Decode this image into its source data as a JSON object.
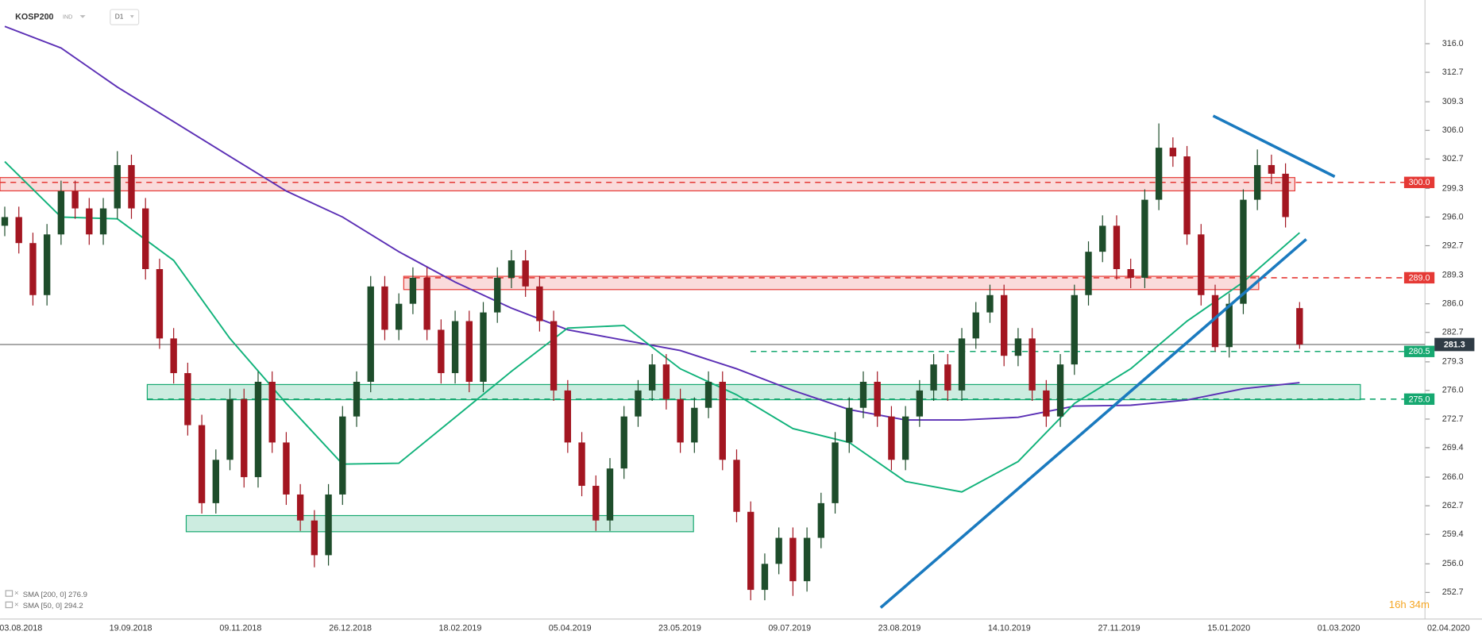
{
  "header": {
    "symbol": "KOSP200",
    "market": "IND",
    "interval": "D1"
  },
  "chart_data": {
    "type": "candlestick",
    "ylim": [
      249.85,
      321.04
    ],
    "yticks": [
      {
        "value": 316,
        "label": "316.0"
      },
      312.7,
      309.3,
      {
        "value": 306,
        "label": "306.0"
      },
      302.7,
      299.3,
      {
        "value": 296,
        "label": "296.0"
      },
      292.7,
      289.3,
      {
        "value": 286,
        "label": "286.0"
      },
      282.7,
      279.3,
      {
        "value": 276,
        "label": "276.0"
      },
      272.7,
      269.4,
      {
        "value": 266,
        "label": "266.0"
      },
      262.7,
      259.4,
      {
        "value": 256,
        "label": "256.0"
      },
      252.7
    ],
    "xticks": [
      "03.08.2018",
      "19.09.2018",
      "09.11.2018",
      "26.12.2018",
      "18.02.2019",
      "05.04.2019",
      "23.05.2019",
      "09.07.2019",
      "23.08.2019",
      "14.10.2019",
      "27.11.2019",
      "15.01.2020",
      "01.03.2020",
      "02.04.2020"
    ],
    "up_color": "#1e4d2b",
    "down_color": "#a31621",
    "candles": [
      [
        295,
        297.2,
        293.8,
        296
      ],
      [
        296,
        297.2,
        291.8,
        293
      ],
      [
        293,
        294.2,
        285.8,
        287
      ],
      [
        287,
        295.2,
        285.8,
        294
      ],
      [
        294,
        300.2,
        292.8,
        299
      ],
      [
        299,
        300.2,
        295.8,
        297
      ],
      [
        297,
        298.2,
        292.8,
        294
      ],
      [
        294,
        298.2,
        292.8,
        297
      ],
      [
        297,
        303.6,
        295.8,
        302
      ],
      [
        302,
        303.2,
        295.8,
        297
      ],
      [
        297,
        298.2,
        288.8,
        290
      ],
      [
        290,
        291.2,
        280.8,
        282
      ],
      [
        282,
        283.2,
        276.8,
        278
      ],
      [
        278,
        279.2,
        270.8,
        272
      ],
      [
        272,
        273.2,
        261.8,
        263
      ],
      [
        263,
        269.2,
        261.8,
        268
      ],
      [
        268,
        276.2,
        266.8,
        275
      ],
      [
        275,
        276.2,
        264.8,
        266
      ],
      [
        266,
        278.2,
        264.8,
        277
      ],
      [
        277,
        278.2,
        268.8,
        270
      ],
      [
        270,
        271.2,
        262.8,
        264
      ],
      [
        264,
        265.2,
        259.8,
        261
      ],
      [
        261,
        262.2,
        255.6,
        257
      ],
      [
        257,
        265.2,
        255.8,
        264
      ],
      [
        264,
        274.2,
        262.8,
        273
      ],
      [
        273,
        278.2,
        271.8,
        277
      ],
      [
        277,
        289.2,
        275.8,
        288
      ],
      [
        288,
        289.2,
        281.8,
        283
      ],
      [
        283,
        287.2,
        281.8,
        286
      ],
      [
        286,
        290.2,
        284.8,
        289
      ],
      [
        289,
        290.2,
        281.8,
        283
      ],
      [
        283,
        284.2,
        276.8,
        278
      ],
      [
        278,
        285.2,
        276.8,
        284
      ],
      [
        284,
        285.2,
        275.8,
        277
      ],
      [
        277,
        286.2,
        275.8,
        285
      ],
      [
        285,
        290.2,
        283.8,
        289
      ],
      [
        289,
        292.2,
        287.8,
        291
      ],
      [
        291,
        292.2,
        286.8,
        288
      ],
      [
        288,
        289.2,
        282.8,
        284
      ],
      [
        284,
        285.2,
        274.8,
        276
      ],
      [
        276,
        277.2,
        268.8,
        270
      ],
      [
        270,
        271.2,
        263.8,
        265
      ],
      [
        265,
        266.2,
        259.8,
        261
      ],
      [
        261,
        268.2,
        259.8,
        267
      ],
      [
        267,
        274.2,
        265.8,
        273
      ],
      [
        273,
        277.2,
        271.8,
        276
      ],
      [
        276,
        280.2,
        274.8,
        279
      ],
      [
        279,
        280.2,
        273.8,
        275
      ],
      [
        275,
        276.2,
        268.8,
        270
      ],
      [
        270,
        275.2,
        268.8,
        274
      ],
      [
        274,
        278.2,
        272.8,
        277
      ],
      [
        277,
        278.2,
        266.8,
        268
      ],
      [
        268,
        269.2,
        260.8,
        262
      ],
      [
        262,
        263.2,
        251.8,
        253
      ],
      [
        253,
        257.2,
        251.8,
        256
      ],
      [
        256,
        260.2,
        254.8,
        259
      ],
      [
        259,
        260.2,
        252.3,
        254
      ],
      [
        254,
        260.2,
        252.8,
        259
      ],
      [
        259,
        264.2,
        257.8,
        263
      ],
      [
        263,
        271.2,
        261.8,
        270
      ],
      [
        270,
        275.2,
        268.8,
        274
      ],
      [
        274,
        278.2,
        272.8,
        277
      ],
      [
        277,
        278.2,
        271.8,
        273
      ],
      [
        273,
        274.2,
        266.8,
        268
      ],
      [
        268,
        274.2,
        266.8,
        273
      ],
      [
        273,
        277.2,
        271.8,
        276
      ],
      [
        276,
        280.2,
        274.8,
        279
      ],
      [
        279,
        280.2,
        274.8,
        276
      ],
      [
        276,
        283.2,
        274.8,
        282
      ],
      [
        282,
        286.2,
        280.8,
        285
      ],
      [
        285,
        288.2,
        283.8,
        287
      ],
      [
        287,
        288.2,
        278.8,
        280
      ],
      [
        280,
        283.2,
        278.8,
        282
      ],
      [
        282,
        283.2,
        274.8,
        276
      ],
      [
        276,
        277.2,
        271.8,
        273
      ],
      [
        273,
        280.2,
        271.8,
        279
      ],
      [
        279,
        288.2,
        277.8,
        287
      ],
      [
        287,
        293.2,
        285.8,
        292
      ],
      [
        292,
        296.2,
        290.8,
        295
      ],
      [
        295,
        296.2,
        288.8,
        290
      ],
      [
        290,
        291.2,
        287.8,
        289
      ],
      [
        289,
        299.2,
        287.8,
        298
      ],
      [
        298,
        306.8,
        296.8,
        304
      ],
      [
        304,
        305.2,
        301.8,
        303
      ],
      [
        303,
        304.2,
        292.8,
        294
      ],
      [
        294,
        295.2,
        285.8,
        287
      ],
      [
        287,
        288.2,
        280.5,
        281
      ],
      [
        281,
        287.2,
        279.8,
        286
      ],
      [
        286,
        299.2,
        284.8,
        298
      ],
      [
        298,
        303.8,
        296.8,
        302
      ],
      [
        302,
        303.2,
        299.8,
        301
      ],
      [
        301,
        302.2,
        294.8,
        296
      ],
      [
        285.5,
        286.2,
        280.8,
        281.3
      ]
    ],
    "series": [
      {
        "name": "SMA [200, 0]",
        "color": "#5b2fb5",
        "values": [
          318,
          315.5,
          311,
          307,
          303,
          299,
          296,
          292,
          288.5,
          285.5,
          283,
          281.8,
          280.6,
          278.5,
          276,
          273.8,
          272.6,
          272.6,
          272.9,
          274.2,
          274.3,
          274.9,
          276.2,
          276.9
        ]
      },
      {
        "name": "SMA [50, 0]",
        "color": "#10b27a",
        "values": [
          302.4,
          296,
          295.8,
          291,
          282,
          274.5,
          267.5,
          267.6,
          272.9,
          278.2,
          283.2,
          283.5,
          278.5,
          275.5,
          271.6,
          270,
          265.5,
          264.3,
          267.8,
          274.5,
          278.5,
          284,
          288.5,
          294.2
        ]
      }
    ],
    "levels": [
      {
        "value": 300,
        "label": "300.0",
        "color": "#e53935"
      },
      {
        "value": 289,
        "label": "289.0",
        "color": "#e53935"
      },
      {
        "value": 280.5,
        "label": "280.5",
        "color": "#16a870"
      },
      {
        "value": 275,
        "label": "275.0",
        "color": "#16a870"
      }
    ],
    "timer": {
      "hours": "16h",
      "minutes": "34m"
    }
  }
}
